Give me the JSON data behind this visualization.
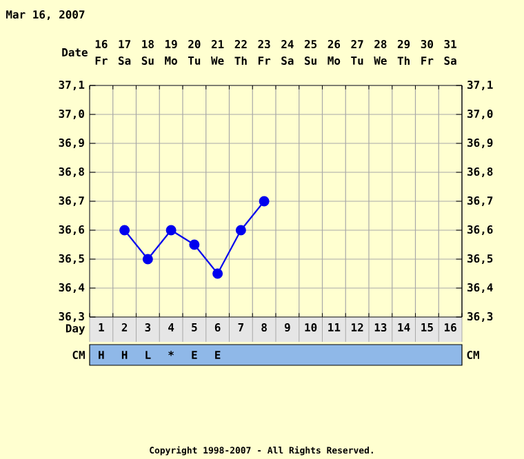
{
  "chart_data": {
    "type": "line",
    "categories": [
      "1",
      "2",
      "3",
      "4",
      "5",
      "6",
      "7",
      "8",
      "9",
      "10",
      "11",
      "12",
      "13",
      "14",
      "15",
      "16"
    ],
    "series": [
      {
        "color": "#0000ee",
        "values": [
          null,
          36.6,
          36.5,
          36.6,
          36.55,
          36.45,
          36.6,
          36.7,
          null,
          null,
          null,
          null,
          null,
          null,
          null,
          null
        ]
      }
    ],
    "ylim": [
      36.3,
      37.1
    ],
    "yticks": [
      {
        "value": 36.3,
        "label": "36,3"
      },
      {
        "value": 36.4,
        "label": "36,4"
      },
      {
        "value": 36.5,
        "label": "36,5"
      },
      {
        "value": 36.6,
        "label": "36,6"
      },
      {
        "value": 36.7,
        "label": "36,7"
      },
      {
        "value": 36.8,
        "label": "36,8"
      },
      {
        "value": 36.9,
        "label": "36,9"
      },
      {
        "value": 37.0,
        "label": "37,0"
      },
      {
        "value": 37.1,
        "label": "37,1"
      }
    ],
    "y2lim": [
      36.3,
      37.1
    ],
    "y2ticks": [
      {
        "value": 36.3,
        "label": "36,3"
      },
      {
        "value": 36.4,
        "label": "36,4"
      },
      {
        "value": 36.5,
        "label": "36,5"
      },
      {
        "value": 36.6,
        "label": "36,6"
      },
      {
        "value": 36.7,
        "label": "36,7"
      },
      {
        "value": 36.8,
        "label": "36,8"
      },
      {
        "value": 36.9,
        "label": "36,9"
      },
      {
        "value": 37.0,
        "label": "37,0"
      },
      {
        "value": 37.1,
        "label": "37,1"
      }
    ],
    "grid": true,
    "marker": "circle",
    "line_style": "solid",
    "annotations": [
      "Mar 16, 2007",
      "Date",
      "Day",
      "CM",
      "CM",
      "16",
      "17",
      "18",
      "19",
      "20",
      "21",
      "22",
      "23",
      "24",
      "25",
      "26",
      "27",
      "28",
      "29",
      "30",
      "31",
      "Fr",
      "Sa",
      "Su",
      "Mo",
      "Tu",
      "We",
      "Th",
      "Fr",
      "Sa",
      "Su",
      "Mo",
      "Tu",
      "We",
      "Th",
      "Fr",
      "Sa",
      "H",
      "H",
      "L",
      "*",
      "E",
      "E",
      "Copyright 1998-2007 - All Rights Reserved."
    ]
  }
}
